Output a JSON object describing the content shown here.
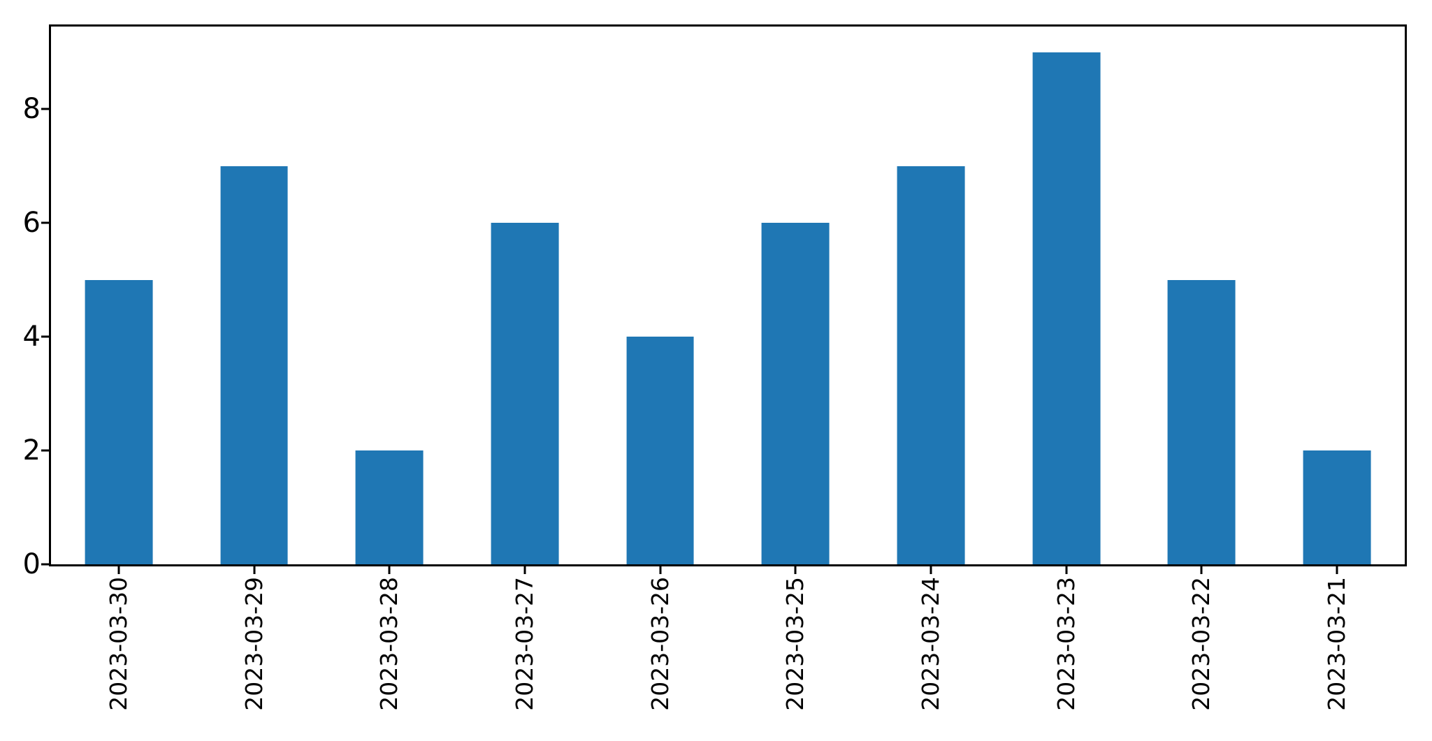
{
  "chart_data": {
    "type": "bar",
    "title": "",
    "xlabel": "",
    "ylabel": "",
    "categories": [
      "2023-03-30",
      "2023-03-29",
      "2023-03-28",
      "2023-03-27",
      "2023-03-26",
      "2023-03-25",
      "2023-03-24",
      "2023-03-23",
      "2023-03-22",
      "2023-03-21"
    ],
    "values": [
      5,
      7,
      2,
      6,
      4,
      6,
      7,
      9,
      5,
      2
    ],
    "ylim": [
      0,
      9.45
    ],
    "yticks": [
      0,
      2,
      4,
      6,
      8
    ],
    "bar_color": "#1f77b4",
    "axis_color": "#000000",
    "background_color": "#ffffff",
    "bar_width_fraction": 0.5,
    "x_tick_label_rotation_deg": 90,
    "grid": false,
    "legend_position": "none"
  }
}
